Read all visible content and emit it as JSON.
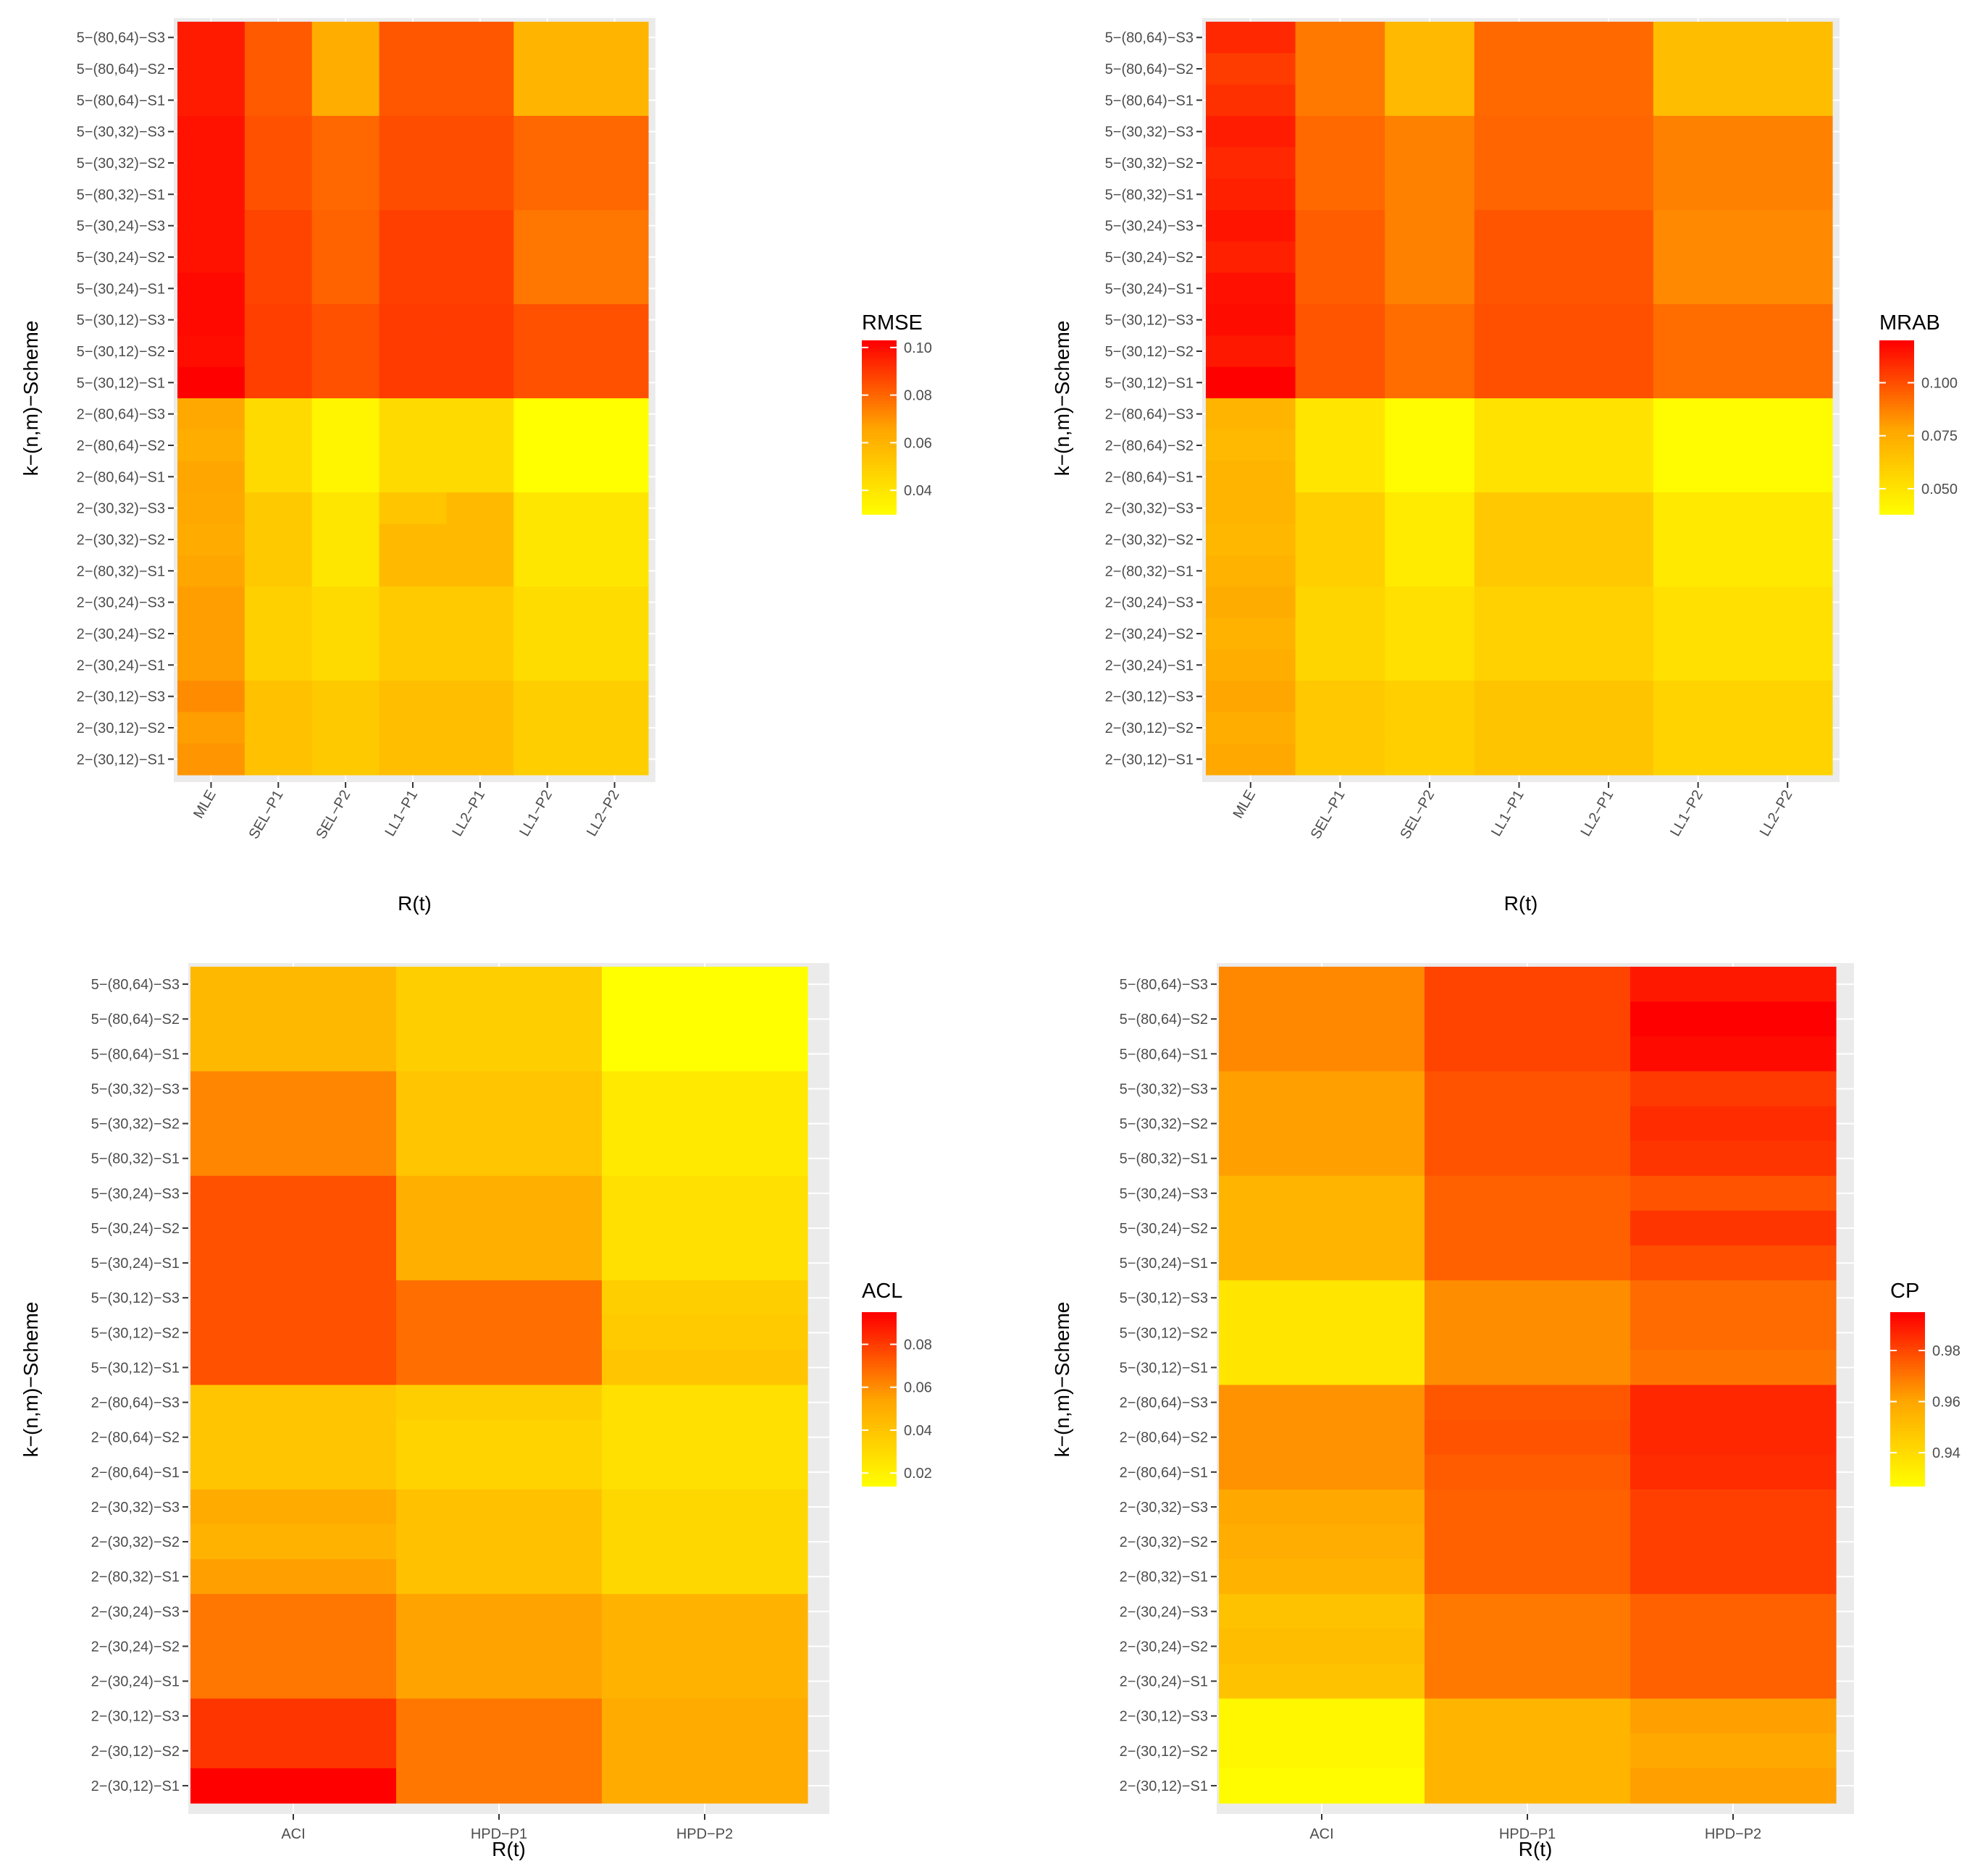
{
  "chart_data": [
    {
      "type": "heatmap",
      "panel": "top-left",
      "xlabel": "R(t)",
      "ylabel": "k−(n,m)−Scheme",
      "categories": [
        "MLE",
        "SEL−P1",
        "SEL−P2",
        "LL1−P1",
        "LL2−P1",
        "LL1−P2",
        "LL2−P2"
      ],
      "rows": [
        "5−(80,64)−S3",
        "5−(80,64)−S2",
        "5−(80,64)−S1",
        "5−(30,32)−S3",
        "5−(30,32)−S2",
        "5−(80,32)−S1",
        "5−(30,24)−S3",
        "5−(30,24)−S2",
        "5−(30,24)−S1",
        "5−(30,12)−S3",
        "5−(30,12)−S2",
        "5−(30,12)−S1",
        "2−(80,64)−S3",
        "2−(80,64)−S2",
        "2−(80,64)−S1",
        "2−(30,32)−S3",
        "2−(30,32)−S2",
        "2−(80,32)−S1",
        "2−(30,24)−S3",
        "2−(30,24)−S2",
        "2−(30,24)−S1",
        "2−(30,12)−S3",
        "2−(30,12)−S2",
        "2−(30,12)−S1"
      ],
      "values": [
        [
          0.097,
          0.083,
          0.063,
          0.084,
          0.084,
          0.06,
          0.06
        ],
        [
          0.097,
          0.083,
          0.063,
          0.084,
          0.084,
          0.06,
          0.06
        ],
        [
          0.097,
          0.083,
          0.063,
          0.084,
          0.084,
          0.06,
          0.06
        ],
        [
          0.099,
          0.085,
          0.08,
          0.086,
          0.086,
          0.08,
          0.08
        ],
        [
          0.099,
          0.085,
          0.08,
          0.086,
          0.086,
          0.08,
          0.08
        ],
        [
          0.099,
          0.085,
          0.08,
          0.086,
          0.086,
          0.08,
          0.08
        ],
        [
          0.099,
          0.088,
          0.081,
          0.089,
          0.089,
          0.077,
          0.077
        ],
        [
          0.099,
          0.088,
          0.081,
          0.089,
          0.089,
          0.077,
          0.077
        ],
        [
          0.101,
          0.088,
          0.081,
          0.089,
          0.089,
          0.077,
          0.077
        ],
        [
          0.101,
          0.089,
          0.085,
          0.09,
          0.09,
          0.085,
          0.085
        ],
        [
          0.1,
          0.089,
          0.085,
          0.09,
          0.09,
          0.085,
          0.085
        ],
        [
          0.103,
          0.089,
          0.085,
          0.09,
          0.09,
          0.085,
          0.085
        ],
        [
          0.065,
          0.045,
          0.034,
          0.045,
          0.045,
          0.03,
          0.03
        ],
        [
          0.063,
          0.045,
          0.034,
          0.045,
          0.045,
          0.03,
          0.03
        ],
        [
          0.066,
          0.045,
          0.034,
          0.045,
          0.045,
          0.03,
          0.03
        ],
        [
          0.065,
          0.052,
          0.04,
          0.053,
          0.058,
          0.04,
          0.04
        ],
        [
          0.064,
          0.052,
          0.04,
          0.058,
          0.058,
          0.04,
          0.04
        ],
        [
          0.066,
          0.052,
          0.04,
          0.058,
          0.058,
          0.04,
          0.04
        ],
        [
          0.068,
          0.049,
          0.045,
          0.051,
          0.051,
          0.044,
          0.044
        ],
        [
          0.068,
          0.049,
          0.045,
          0.051,
          0.051,
          0.044,
          0.044
        ],
        [
          0.068,
          0.049,
          0.045,
          0.051,
          0.051,
          0.044,
          0.044
        ],
        [
          0.072,
          0.055,
          0.052,
          0.056,
          0.056,
          0.05,
          0.05
        ],
        [
          0.068,
          0.055,
          0.052,
          0.056,
          0.056,
          0.05,
          0.05
        ],
        [
          0.07,
          0.055,
          0.052,
          0.056,
          0.056,
          0.05,
          0.05
        ]
      ],
      "legend_title": "RMSE",
      "legend_ticks": [
        0.04,
        0.06,
        0.08,
        0.1
      ],
      "legend_tick_labels": [
        "0.04",
        "0.06",
        "0.08",
        "0.10"
      ],
      "color_range": [
        0.03,
        0.103
      ]
    },
    {
      "type": "heatmap",
      "panel": "top-right",
      "xlabel": "R(t)",
      "ylabel": "k−(n,m)−Scheme",
      "categories": [
        "MLE",
        "SEL−P1",
        "SEL−P2",
        "LL1−P1",
        "LL2−P1",
        "LL1−P2",
        "LL2−P2"
      ],
      "rows": [
        "5−(80,64)−S3",
        "5−(80,64)−S2",
        "5−(80,64)−S1",
        "5−(30,32)−S3",
        "5−(30,32)−S2",
        "5−(80,32)−S1",
        "5−(30,24)−S3",
        "5−(30,24)−S2",
        "5−(30,24)−S1",
        "5−(30,12)−S3",
        "5−(30,12)−S2",
        "5−(30,12)−S1",
        "2−(80,64)−S3",
        "2−(80,64)−S2",
        "2−(80,64)−S1",
        "2−(30,32)−S3",
        "2−(30,32)−S2",
        "2−(80,32)−S1",
        "2−(30,24)−S3",
        "2−(30,24)−S2",
        "2−(30,24)−S1",
        "2−(30,12)−S3",
        "2−(30,12)−S2",
        "2−(30,12)−S1"
      ],
      "values": [
        [
          0.11,
          0.09,
          0.07,
          0.094,
          0.094,
          0.068,
          0.068
        ],
        [
          0.105,
          0.09,
          0.07,
          0.094,
          0.094,
          0.068,
          0.068
        ],
        [
          0.108,
          0.09,
          0.07,
          0.094,
          0.094,
          0.068,
          0.068
        ],
        [
          0.113,
          0.094,
          0.088,
          0.095,
          0.095,
          0.088,
          0.088
        ],
        [
          0.11,
          0.094,
          0.088,
          0.095,
          0.095,
          0.088,
          0.088
        ],
        [
          0.112,
          0.094,
          0.088,
          0.095,
          0.095,
          0.088,
          0.088
        ],
        [
          0.115,
          0.097,
          0.088,
          0.099,
          0.099,
          0.086,
          0.086
        ],
        [
          0.112,
          0.097,
          0.088,
          0.099,
          0.099,
          0.086,
          0.086
        ],
        [
          0.116,
          0.097,
          0.088,
          0.099,
          0.099,
          0.086,
          0.086
        ],
        [
          0.117,
          0.099,
          0.093,
          0.1,
          0.1,
          0.093,
          0.093
        ],
        [
          0.114,
          0.099,
          0.093,
          0.1,
          0.1,
          0.093,
          0.093
        ],
        [
          0.12,
          0.099,
          0.093,
          0.1,
          0.1,
          0.093,
          0.093
        ],
        [
          0.072,
          0.05,
          0.04,
          0.051,
          0.051,
          0.04,
          0.04
        ],
        [
          0.07,
          0.05,
          0.04,
          0.051,
          0.051,
          0.04,
          0.04
        ],
        [
          0.072,
          0.05,
          0.04,
          0.051,
          0.051,
          0.04,
          0.04
        ],
        [
          0.072,
          0.06,
          0.047,
          0.063,
          0.063,
          0.048,
          0.048
        ],
        [
          0.071,
          0.06,
          0.047,
          0.063,
          0.063,
          0.048,
          0.048
        ],
        [
          0.073,
          0.06,
          0.047,
          0.063,
          0.063,
          0.048,
          0.048
        ],
        [
          0.076,
          0.057,
          0.052,
          0.059,
          0.059,
          0.052,
          0.052
        ],
        [
          0.073,
          0.057,
          0.052,
          0.059,
          0.059,
          0.052,
          0.052
        ],
        [
          0.075,
          0.057,
          0.052,
          0.059,
          0.059,
          0.052,
          0.052
        ],
        [
          0.078,
          0.063,
          0.06,
          0.065,
          0.065,
          0.058,
          0.058
        ],
        [
          0.075,
          0.063,
          0.06,
          0.065,
          0.065,
          0.058,
          0.058
        ],
        [
          0.077,
          0.063,
          0.06,
          0.065,
          0.065,
          0.058,
          0.058
        ]
      ],
      "legend_title": "MRAB",
      "legend_ticks": [
        0.05,
        0.075,
        0.1
      ],
      "legend_tick_labels": [
        "0.050",
        "0.075",
        "0.100"
      ],
      "color_range": [
        0.038,
        0.12
      ]
    },
    {
      "type": "heatmap",
      "panel": "bottom-left",
      "xlabel": "R(t)",
      "ylabel": "k−(n,m)−Scheme",
      "categories": [
        "ACI",
        "HPD−P1",
        "HPD−P2"
      ],
      "rows": [
        "5−(80,64)−S3",
        "5−(80,64)−S2",
        "5−(80,64)−S1",
        "5−(30,32)−S3",
        "5−(30,32)−S2",
        "5−(80,32)−S1",
        "5−(30,24)−S3",
        "5−(30,24)−S2",
        "5−(30,24)−S1",
        "5−(30,12)−S3",
        "5−(30,12)−S2",
        "5−(30,12)−S1",
        "2−(80,64)−S3",
        "2−(80,64)−S2",
        "2−(80,64)−S1",
        "2−(30,32)−S3",
        "2−(30,32)−S2",
        "2−(80,32)−S1",
        "2−(30,24)−S3",
        "2−(30,24)−S2",
        "2−(30,24)−S1",
        "2−(30,12)−S3",
        "2−(30,12)−S2",
        "2−(30,12)−S1"
      ],
      "values": [
        [
          0.046,
          0.036,
          0.014
        ],
        [
          0.046,
          0.036,
          0.014
        ],
        [
          0.046,
          0.036,
          0.014
        ],
        [
          0.062,
          0.04,
          0.024
        ],
        [
          0.062,
          0.04,
          0.024
        ],
        [
          0.062,
          0.04,
          0.024
        ],
        [
          0.075,
          0.05,
          0.028
        ],
        [
          0.075,
          0.05,
          0.028
        ],
        [
          0.075,
          0.05,
          0.028
        ],
        [
          0.075,
          0.068,
          0.036
        ],
        [
          0.075,
          0.068,
          0.038
        ],
        [
          0.075,
          0.068,
          0.04
        ],
        [
          0.04,
          0.036,
          0.028
        ],
        [
          0.04,
          0.034,
          0.028
        ],
        [
          0.04,
          0.034,
          0.028
        ],
        [
          0.052,
          0.042,
          0.032
        ],
        [
          0.048,
          0.042,
          0.032
        ],
        [
          0.056,
          0.042,
          0.032
        ],
        [
          0.066,
          0.055,
          0.048
        ],
        [
          0.066,
          0.055,
          0.048
        ],
        [
          0.066,
          0.055,
          0.048
        ],
        [
          0.082,
          0.066,
          0.052
        ],
        [
          0.082,
          0.066,
          0.052
        ],
        [
          0.095,
          0.066,
          0.052
        ]
      ],
      "legend_title": "ACL",
      "legend_ticks": [
        0.02,
        0.04,
        0.06,
        0.08
      ],
      "legend_tick_labels": [
        "0.02",
        "0.04",
        "0.06",
        "0.08"
      ],
      "color_range": [
        0.014,
        0.095
      ]
    },
    {
      "type": "heatmap",
      "panel": "bottom-right",
      "xlabel": "R(t)",
      "ylabel": "k−(n,m)−Scheme",
      "categories": [
        "ACI",
        "HPD−P1",
        "HPD−P2"
      ],
      "rows": [
        "5−(80,64)−S3",
        "5−(80,64)−S2",
        "5−(80,64)−S1",
        "5−(30,32)−S3",
        "5−(30,32)−S2",
        "5−(80,32)−S1",
        "5−(30,24)−S3",
        "5−(30,24)−S2",
        "5−(30,24)−S1",
        "5−(30,12)−S3",
        "5−(30,12)−S2",
        "5−(30,12)−S1",
        "2−(80,64)−S3",
        "2−(80,64)−S2",
        "2−(80,64)−S1",
        "2−(30,32)−S3",
        "2−(30,32)−S2",
        "2−(80,32)−S1",
        "2−(30,24)−S3",
        "2−(30,24)−S2",
        "2−(30,24)−S1",
        "2−(30,12)−S3",
        "2−(30,12)−S2",
        "2−(30,12)−S1"
      ],
      "values": [
        [
          0.967,
          0.981,
          0.99
        ],
        [
          0.967,
          0.981,
          0.995
        ],
        [
          0.967,
          0.981,
          0.993
        ],
        [
          0.962,
          0.978,
          0.983
        ],
        [
          0.962,
          0.978,
          0.986
        ],
        [
          0.962,
          0.978,
          0.984
        ],
        [
          0.955,
          0.975,
          0.978
        ],
        [
          0.955,
          0.975,
          0.984
        ],
        [
          0.955,
          0.975,
          0.979
        ],
        [
          0.937,
          0.966,
          0.973
        ],
        [
          0.937,
          0.966,
          0.973
        ],
        [
          0.937,
          0.966,
          0.971
        ],
        [
          0.965,
          0.977,
          0.987
        ],
        [
          0.965,
          0.978,
          0.987
        ],
        [
          0.965,
          0.976,
          0.986
        ],
        [
          0.96,
          0.975,
          0.982
        ],
        [
          0.958,
          0.975,
          0.982
        ],
        [
          0.956,
          0.975,
          0.982
        ],
        [
          0.95,
          0.97,
          0.975
        ],
        [
          0.952,
          0.97,
          0.975
        ],
        [
          0.95,
          0.97,
          0.975
        ],
        [
          0.93,
          0.955,
          0.962
        ],
        [
          0.93,
          0.955,
          0.96
        ],
        [
          0.928,
          0.955,
          0.962
        ]
      ],
      "legend_title": "CP",
      "legend_ticks": [
        0.94,
        0.96,
        0.98
      ],
      "legend_tick_labels": [
        "0.94",
        "0.96",
        "0.98"
      ],
      "color_range": [
        0.927,
        0.995
      ]
    }
  ],
  "colors": {
    "low": "#ffff00",
    "mid": "#ffa500",
    "high": "#ff0000",
    "panel_background": "#ebebeb",
    "grid": "#ffffff"
  }
}
